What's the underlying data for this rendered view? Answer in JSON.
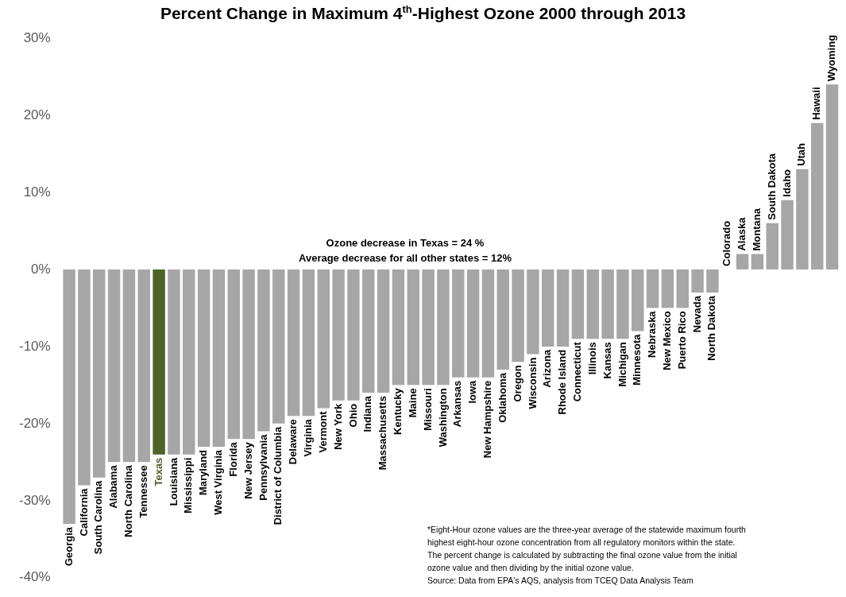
{
  "chart_data": {
    "type": "bar",
    "title": "Percent Change in Maximum 4$^{th}$-Highest Ozone 2000 through 2013",
    "categories": [
      "Georgia",
      "California",
      "South Carolina",
      "Alabama",
      "North Carolina",
      "Tennessee",
      "Texas",
      "Louisiana",
      "Mississippi",
      "Maryland",
      "West Virginia",
      "Florida",
      "New Jersey",
      "Pennsylvania",
      "District of Columbia",
      "Delaware",
      "Virginia",
      "Vermont",
      "New York",
      "Ohio",
      "Indiana",
      "Massachusetts",
      "Kentucky",
      "Maine",
      "Missouri",
      "Washington",
      "Arkansas",
      "Iowa",
      "New Hampshire",
      "Oklahoma",
      "Oregon",
      "Wisconsin",
      "Arizona",
      "Rhode Island",
      "Connecticut",
      "Illinois",
      "Kansas",
      "Michigan",
      "Minnesota",
      "Nebraska",
      "New Mexico",
      "Puerto Rico",
      "Nevada",
      "North Dakota",
      "Colorado",
      "Alaska",
      "Montana",
      "South Dakota",
      "Idaho",
      "Utah",
      "Hawaii",
      "Wyoming"
    ],
    "series": [
      {
        "color": "#a6a6a6",
        "values": [
          -33,
          -28,
          -27,
          -25,
          -25,
          -25,
          -24,
          -24,
          -24,
          -23,
          -23,
          -22,
          -22,
          -21,
          -20,
          -19,
          -19,
          -18,
          -17,
          -17,
          -16,
          -16,
          -15,
          -15,
          -15,
          -15,
          -14,
          -14,
          -14,
          -13,
          -12,
          -11,
          -10,
          -10,
          -9,
          -9,
          -9,
          -9,
          -8,
          -5,
          -5,
          -5,
          -3,
          -3,
          0,
          2,
          2,
          6,
          9,
          13,
          19,
          24
        ],
        "colors": [
          "#a6a6a6",
          "#a6a6a6",
          "#a6a6a6",
          "#a6a6a6",
          "#a6a6a6",
          "#a6a6a6",
          "#4f6228",
          "#a6a6a6",
          "#a6a6a6",
          "#a6a6a6",
          "#a6a6a6",
          "#a6a6a6",
          "#a6a6a6",
          "#a6a6a6",
          "#a6a6a6",
          "#a6a6a6",
          "#a6a6a6",
          "#a6a6a6",
          "#a6a6a6",
          "#a6a6a6",
          "#a6a6a6",
          "#a6a6a6",
          "#a6a6a6",
          "#a6a6a6",
          "#a6a6a6",
          "#a6a6a6",
          "#a6a6a6",
          "#a6a6a6",
          "#a6a6a6",
          "#a6a6a6",
          "#a6a6a6",
          "#a6a6a6",
          "#a6a6a6",
          "#a6a6a6",
          "#a6a6a6",
          "#a6a6a6",
          "#a6a6a6",
          "#a6a6a6",
          "#a6a6a6",
          "#a6a6a6",
          "#a6a6a6",
          "#a6a6a6",
          "#a6a6a6",
          "#a6a6a6",
          "#a6a6a6",
          "#a6a6a6",
          "#a6a6a6",
          "#a6a6a6",
          "#a6a6a6",
          "#a6a6a6",
          "#a6a6a6",
          "#a6a6a6"
        ]
      }
    ],
    "ylim": [
      -40,
      30
    ],
    "yticks": [
      {
        "value": -40,
        "label": "-40%"
      },
      {
        "value": -30,
        "label": "-30%"
      },
      {
        "value": -20,
        "label": "-20%"
      },
      {
        "value": -10,
        "label": "-10%"
      },
      {
        "value": 0,
        "label": "0%"
      },
      {
        "value": 10,
        "label": "10%"
      },
      {
        "value": 20,
        "label": "20%"
      },
      {
        "value": 30,
        "label": "30%"
      }
    ],
    "annotations": [
      "Ozone decrease in Texas = 24 %\nAverage decrease for all other states = 12%",
      "*Eight-Hour ozone values are the three-year average of the statewide maximum fourth\nhighest eight-hour ozone concentration from all regulatory monitors within the state.\nThe percent change is calculated by subtracting the final ozone value from the initial\nozone value and then dividing by the initial ozone value.\nSource:  Data from EPA's AQS, analysis from TCEQ Data Analysis Team"
    ]
  }
}
